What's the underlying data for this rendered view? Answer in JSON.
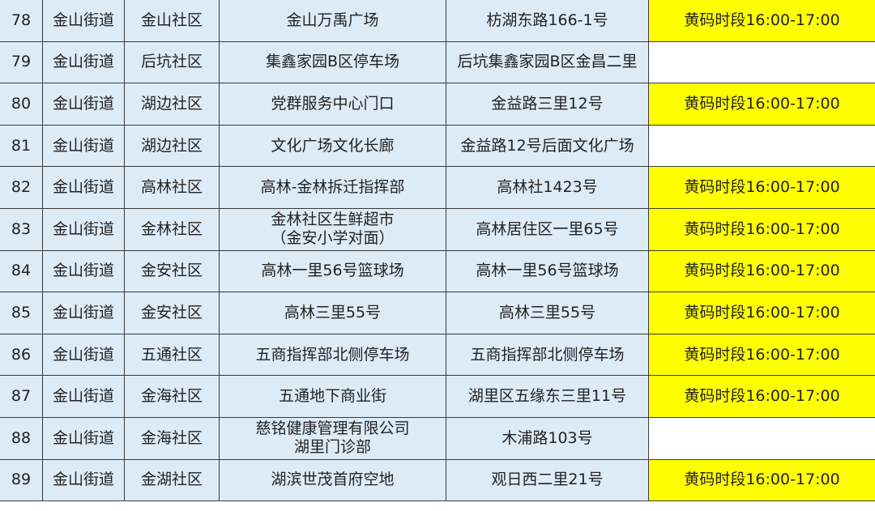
{
  "colors": {
    "cell_bg": "#DDEBF7",
    "yellow_code": "#FFFF00",
    "blank": "#FFFFFF"
  },
  "rows": [
    {
      "no": "78",
      "street": "金山街道",
      "community": "金山社区",
      "site": "金山万禹广场",
      "address": "枋湖东路166-1号",
      "note": "黄码时段16:00-17:00"
    },
    {
      "no": "79",
      "street": "金山街道",
      "community": "后坑社区",
      "site": "集鑫家园B区停车场",
      "address": "后坑集鑫家园B区金昌二里",
      "note": ""
    },
    {
      "no": "80",
      "street": "金山街道",
      "community": "湖边社区",
      "site": "党群服务中心门口",
      "address": "金益路三里12号",
      "note": "黄码时段16:00-17:00"
    },
    {
      "no": "81",
      "street": "金山街道",
      "community": "湖边社区",
      "site": "文化广场文化长廊",
      "address": "金益路12号后面文化广场",
      "note": ""
    },
    {
      "no": "82",
      "street": "金山街道",
      "community": "高林社区",
      "site": "高林-金林拆迁指挥部",
      "address": "高林社1423号",
      "note": "黄码时段16:00-17:00"
    },
    {
      "no": "83",
      "street": "金山街道",
      "community": "金林社区",
      "site": "金林社区生鲜超市\n（金安小学对面）",
      "address": "高林居住区一里65号",
      "note": "黄码时段16:00-17:00"
    },
    {
      "no": "84",
      "street": "金山街道",
      "community": "金安社区",
      "site": "高林一里56号篮球场",
      "address": "高林一里56号篮球场",
      "note": "黄码时段16:00-17:00"
    },
    {
      "no": "85",
      "street": "金山街道",
      "community": "金安社区",
      "site": "高林三里55号",
      "address": "高林三里55号",
      "note": "黄码时段16:00-17:00"
    },
    {
      "no": "86",
      "street": "金山街道",
      "community": "五通社区",
      "site": "五商指挥部北侧停车场",
      "address": "五商指挥部北侧停车场",
      "note": "黄码时段16:00-17:00"
    },
    {
      "no": "87",
      "street": "金山街道",
      "community": "金海社区",
      "site": "五通地下商业街",
      "address": "湖里区五缘东三里11号",
      "note": "黄码时段16:00-17:00"
    },
    {
      "no": "88",
      "street": "金山街道",
      "community": "金海社区",
      "site": "慈铭健康管理有限公司\n湖里门诊部",
      "address": "木浦路103号",
      "note": ""
    },
    {
      "no": "89",
      "street": "金山街道",
      "community": "金湖社区",
      "site": "湖滨世茂首府空地",
      "address": "观日西二里21号",
      "note": "黄码时段16:00-17:00"
    }
  ]
}
